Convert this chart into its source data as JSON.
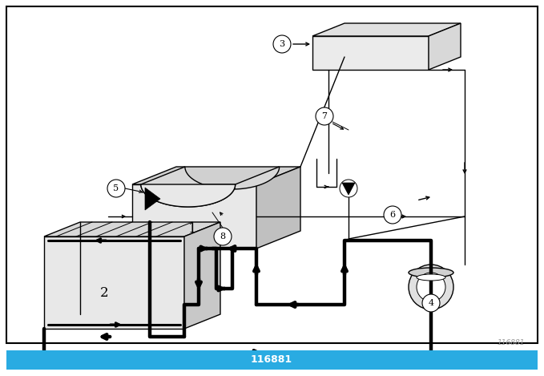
{
  "bg_color": "#ffffff",
  "line_color": "#000000",
  "thick_color": "#000000",
  "gray_light": "#d8d8d8",
  "gray_mid": "#c8c8c8",
  "gray_dark": "#b0b0b0",
  "footer_bg": "#29abe2",
  "footer_text": "116881",
  "footer_text_color": "#ffffff",
  "watermark_text": "116881",
  "watermark_color": "#999999",
  "lw_thin": 1.0,
  "lw_thick": 3.2,
  "lw_border": 1.5,
  "figw": 6.79,
  "figh": 4.69,
  "dpi": 100
}
